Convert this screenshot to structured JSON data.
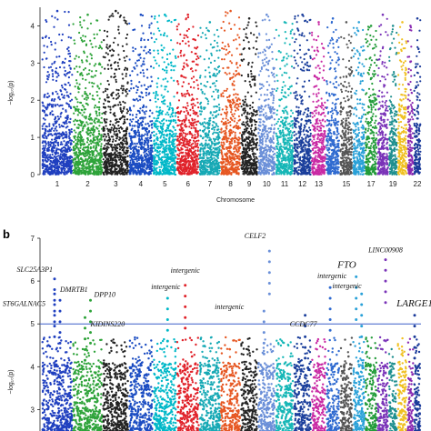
{
  "figure": {
    "panel_b_label": "b"
  },
  "chart_data": [
    {
      "type": "scatter",
      "title": "",
      "xlabel": "Chromosome",
      "ylabel": "−log₁₀(p)",
      "ylim": [
        0,
        4.5
      ],
      "yticks": [
        0,
        1,
        2,
        3,
        4
      ],
      "xtick_labels": [
        "1",
        "2",
        "3",
        "4",
        "5",
        "6",
        "7",
        "8",
        "9",
        "10",
        "11",
        "12",
        "13",
        "15",
        "17",
        "19",
        "22"
      ],
      "chromosomes": [
        {
          "chr": "1",
          "color": "#1f3fbf",
          "peak": 4.4
        },
        {
          "chr": "2",
          "color": "#2ea33a",
          "peak": 4.3
        },
        {
          "chr": "3",
          "color": "#222222",
          "peak": 4.4
        },
        {
          "chr": "4",
          "color": "#1a4cc2",
          "peak": 4.3
        },
        {
          "chr": "5",
          "color": "#00b8c8",
          "peak": 4.3
        },
        {
          "chr": "6",
          "color": "#e0222a",
          "peak": 4.3
        },
        {
          "chr": "7",
          "color": "#17a9b5",
          "peak": 4.1
        },
        {
          "chr": "8",
          "color": "#e65722",
          "peak": 4.4
        },
        {
          "chr": "9",
          "color": "#222222",
          "peak": 4.2
        },
        {
          "chr": "10",
          "color": "#6a8fd8",
          "peak": 4.3
        },
        {
          "chr": "11",
          "color": "#17b7b7",
          "peak": 4.1
        },
        {
          "chr": "12",
          "color": "#1b3f9c",
          "peak": 4.3
        },
        {
          "chr": "13",
          "color": "#c92aa4",
          "peak": 4.1
        },
        {
          "chr": "14",
          "color": "#2f6ad0",
          "peak": 4.2
        },
        {
          "chr": "15",
          "color": "#555555",
          "peak": 4.1
        },
        {
          "chr": "16",
          "color": "#2aa1d8",
          "peak": 4.1
        },
        {
          "chr": "17",
          "color": "#239c3a",
          "peak": 4.0
        },
        {
          "chr": "18",
          "color": "#7a33b8",
          "peak": 4.3
        },
        {
          "chr": "19",
          "color": "#1e8f8f",
          "peak": 4.0
        },
        {
          "chr": "20",
          "color": "#f0c020",
          "peak": 4.1
        },
        {
          "chr": "21",
          "color": "#8a2ab2",
          "peak": 4.0
        },
        {
          "chr": "22",
          "color": "#1a3a9a",
          "peak": 4.2
        }
      ]
    },
    {
      "type": "scatter",
      "title": "",
      "xlabel": "",
      "ylabel": "−log₁₀(p)",
      "ylim": [
        2.5,
        7
      ],
      "yticks": [
        3,
        4,
        5,
        6,
        7
      ],
      "threshold": 5,
      "annotations": [
        {
          "label": "SLC25A3P1",
          "chr": "1",
          "y": 6.05
        },
        {
          "label": "ST6GALNAC5",
          "chr": "1",
          "y": 5.55
        },
        {
          "label": "DMRTB1",
          "chr": "1",
          "y": 5.7
        },
        {
          "label": "DPP10",
          "chr": "2",
          "y": 5.55
        },
        {
          "label": "KIDINS220",
          "chr": "2",
          "y": 5.15
        },
        {
          "label": "intergenic",
          "chr": "5",
          "y": 5.6
        },
        {
          "label": "intergenic",
          "chr": "6",
          "y": 5.9
        },
        {
          "label": "CELF2",
          "chr": "10",
          "y": 6.7
        },
        {
          "label": "intergenic",
          "chr": "10",
          "y": 5.3
        },
        {
          "label": "CCDC77",
          "chr": "12",
          "y": 5.2
        },
        {
          "label": "intergenic",
          "chr": "14",
          "y": 5.85
        },
        {
          "label": "intergenic",
          "chr": "16",
          "y": 5.7
        },
        {
          "label": "FTO",
          "chr": "16",
          "y": 6.1
        },
        {
          "label": "LINC00908",
          "chr": "18",
          "y": 6.5
        },
        {
          "label": "LARGE1",
          "chr": "22",
          "y": 5.2
        }
      ]
    }
  ]
}
